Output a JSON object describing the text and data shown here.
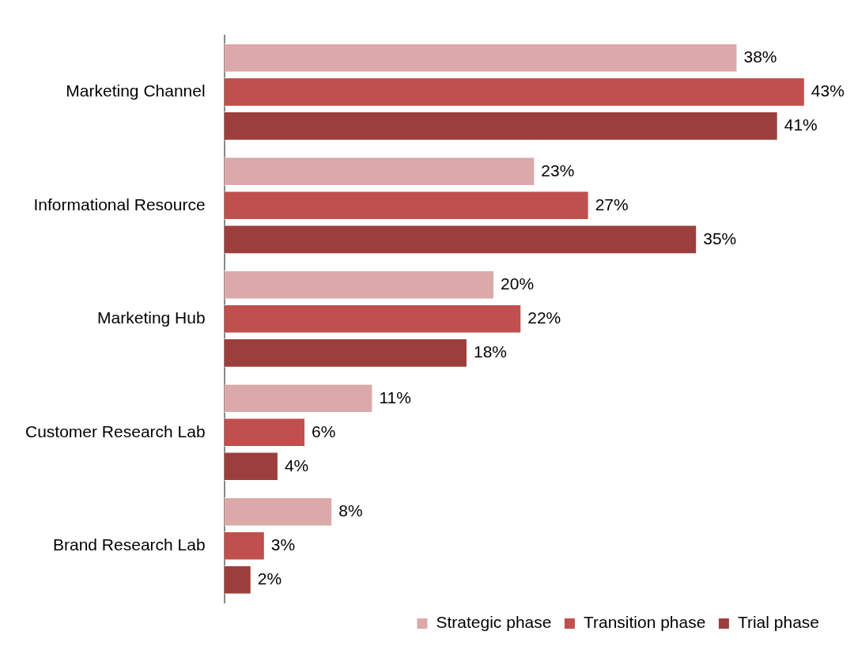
{
  "chart_data": {
    "type": "bar",
    "orientation": "horizontal",
    "categories": [
      "Marketing Channel",
      "Informational Resource",
      "Marketing Hub",
      "Customer Research Lab",
      "Brand Research Lab"
    ],
    "series": [
      {
        "name": "Strategic phase",
        "color": "#dba9a9",
        "values": [
          38,
          23,
          20,
          11,
          8
        ],
        "value_labels": [
          "38%",
          "23%",
          "20%",
          "11%",
          "8%"
        ]
      },
      {
        "name": "Transition phase",
        "color": "#c0504d",
        "values": [
          43,
          27,
          22,
          6,
          3
        ],
        "value_labels": [
          "43%",
          "27%",
          "22%",
          "6%",
          "3%"
        ]
      },
      {
        "name": "Trial phase",
        "color": "#9c3f3c",
        "values": [
          41,
          35,
          18,
          4,
          2
        ],
        "value_labels": [
          "41%",
          "35%",
          "18%",
          "4%",
          "2%"
        ]
      }
    ],
    "legend": "bottom right",
    "grid": false
  }
}
